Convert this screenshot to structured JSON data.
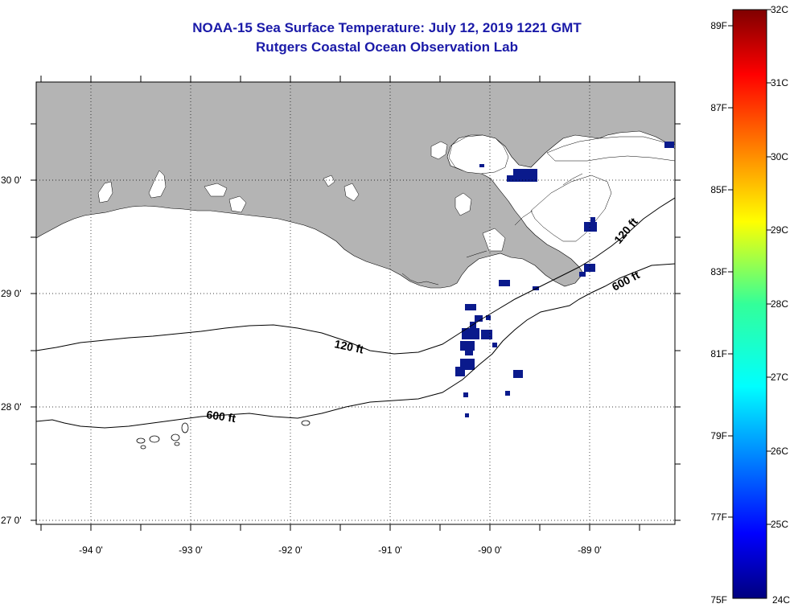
{
  "header": {
    "title_line1": "NOAA-15 Sea Surface Temperature:  July 12, 2019 1221 GMT",
    "title_line2": "Rutgers Coastal Ocean Observation Lab"
  },
  "axes": {
    "lat_labels": [
      "30 0'",
      "29 0'",
      "28 0'",
      "27 0'"
    ],
    "lon_labels": [
      "-94 0'",
      "-93 0'",
      "-92 0'",
      "-91 0'",
      "-90 0'",
      "-89 0'"
    ]
  },
  "contours": {
    "label_120_west": "120 ft",
    "label_600_west": "600 ft",
    "label_120_east": "120 ft",
    "label_600_east": "600 ft"
  },
  "colorbar": {
    "fahrenheit_labels": [
      "89F",
      "87F",
      "85F",
      "83F",
      "81F",
      "79F",
      "77F",
      "75F"
    ],
    "celsius_labels": [
      "32C",
      "31C",
      "30C",
      "29C",
      "28C",
      "27C",
      "26C",
      "25C",
      "24C"
    ]
  },
  "colors": {
    "title": "#1a1aa8",
    "land": "#b4b4b4",
    "water": "#ffffff",
    "cold_pixels": "#0a1a8c"
  }
}
